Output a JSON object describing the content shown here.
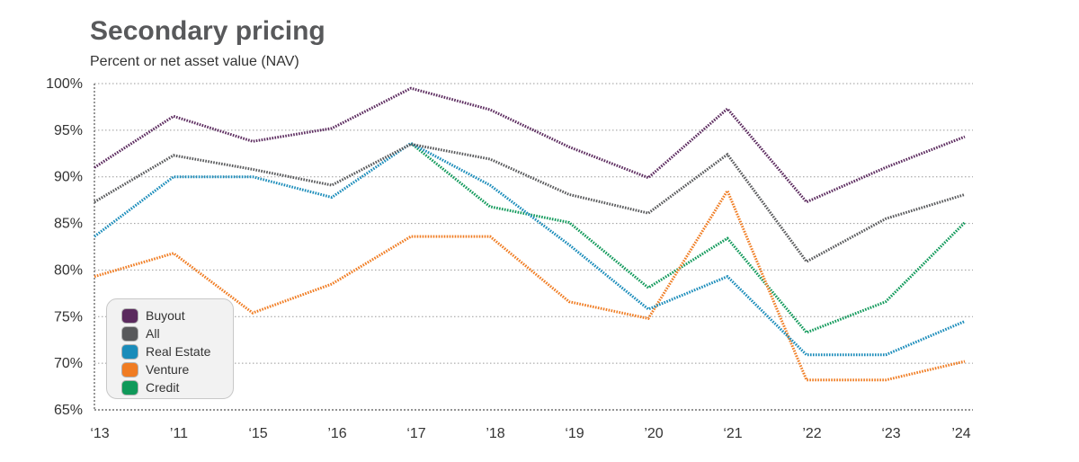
{
  "header": {
    "title": "Secondary pricing",
    "subtitle": "Percent or net asset value (NAV)"
  },
  "chart_data": {
    "type": "line",
    "title": "Secondary pricing",
    "subtitle": "Percent or net asset value (NAV)",
    "xlabel": "",
    "ylabel": "",
    "x": [
      "‘13",
      "’11",
      "‘15",
      "’16",
      "‘17",
      "’18",
      "‘19",
      "’20",
      "‘21",
      "’22",
      "‘23",
      "’24"
    ],
    "yticks": [
      "100%",
      "95%",
      "90%",
      "85%",
      "80%",
      "75%",
      "70%",
      "65%"
    ],
    "ylim": [
      65,
      100
    ],
    "grid": true,
    "line_style": "dotted",
    "legend_position": "bottom-left",
    "series": [
      {
        "name": "Buyout",
        "color": "#5b2a5e",
        "values": [
          91,
          96.5,
          93.8,
          95.2,
          99.5,
          97.2,
          93.2,
          89.9,
          97.3,
          87.3,
          91,
          94.3
        ]
      },
      {
        "name": "All",
        "color": "#58595b",
        "values": [
          87.3,
          92.3,
          90.8,
          89.1,
          93.5,
          91.9,
          88.1,
          86.1,
          92.4,
          80.9,
          85.5,
          88.1
        ]
      },
      {
        "name": "Real Estate",
        "color": "#1a8cba",
        "values": [
          83.6,
          90,
          90,
          87.8,
          93.6,
          89.1,
          82.7,
          75.8,
          79.3,
          70.9,
          70.9,
          74.5
        ]
      },
      {
        "name": "Venture",
        "color": "#f07c22",
        "values": [
          79.3,
          81.8,
          75.4,
          78.5,
          83.6,
          83.6,
          76.6,
          74.8,
          88.5,
          68.2,
          68.2,
          70.2
        ]
      },
      {
        "name": "Credit",
        "color": "#10995a",
        "values": [
          null,
          null,
          null,
          null,
          93.6,
          86.8,
          85.1,
          78.1,
          83.4,
          73.3,
          76.6,
          85.1
        ]
      }
    ]
  }
}
